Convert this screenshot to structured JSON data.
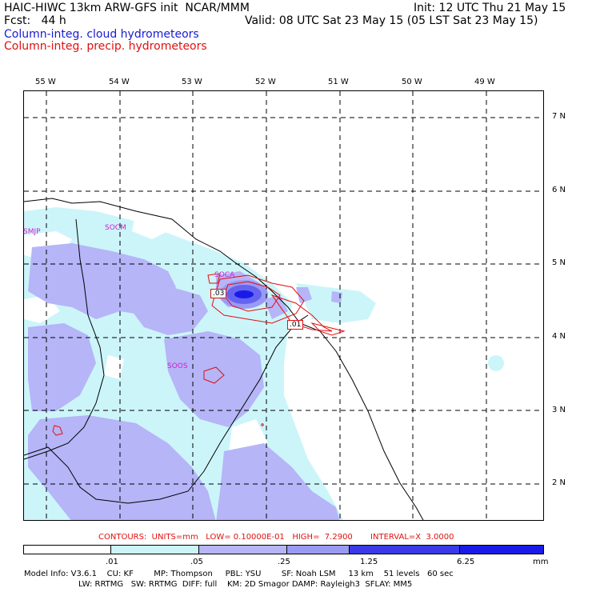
{
  "header": {
    "line1_left": "HAIC-HIWC 13km ARW-GFS init  NCAR/MMM",
    "line1_right": "Init: 12 UTC Thu 21 May 15",
    "line2_left": "Fcst:   44 h",
    "line2_right": "Valid: 08 UTC Sat 23 May 15 (05 LST Sat 23 May 15)",
    "field_cloud": "Column-integ. cloud hydrometeors",
    "field_precip": "Column-integ. precip. hydrometeors"
  },
  "axes": {
    "lon_labels": [
      "55 W",
      "54 W",
      "53 W",
      "52 W",
      "51 W",
      "50 W",
      "49 W"
    ],
    "lat_labels": [
      "7 N",
      "6 N",
      "5 N",
      "4 N",
      "3 N",
      "2 N"
    ]
  },
  "stations": [
    "SMJP",
    "SOCM",
    "SOCA",
    "SOOS"
  ],
  "contour_labels": [
    ".03",
    ".01"
  ],
  "colors": {
    "cloud_text": "#1a1ad0",
    "precip_text": "#e01010",
    "station": "#d020d0",
    "level1": "#ffffff",
    "level2": "#ccf5fa",
    "level3": "#b5b5f8",
    "level4": "#9a9af5",
    "level5": "#6464f0",
    "level6": "#3a3ae8",
    "level7": "#1a1ae8"
  },
  "footer": {
    "contours": "CONTOURS:  UNITS=mm   LOW= 0.10000E-01   HIGH=  7.2900       INTERVAL=X  3.0000",
    "colorbar_labels": [
      ".01",
      ".05",
      ".25",
      "1.25",
      "6.25",
      "mm"
    ],
    "model_info_1": "Model Info: V3.6.1    CU: KF        MP: Thompson     PBL: YSU        SF: Noah LSM     13 km    51 levels   60 sec",
    "model_info_2": "LW: RRTMG   SW: RRTMG  DIFF: full    KM: 2D Smagor DAMP: Rayleigh3  SFLAY: MM5"
  }
}
